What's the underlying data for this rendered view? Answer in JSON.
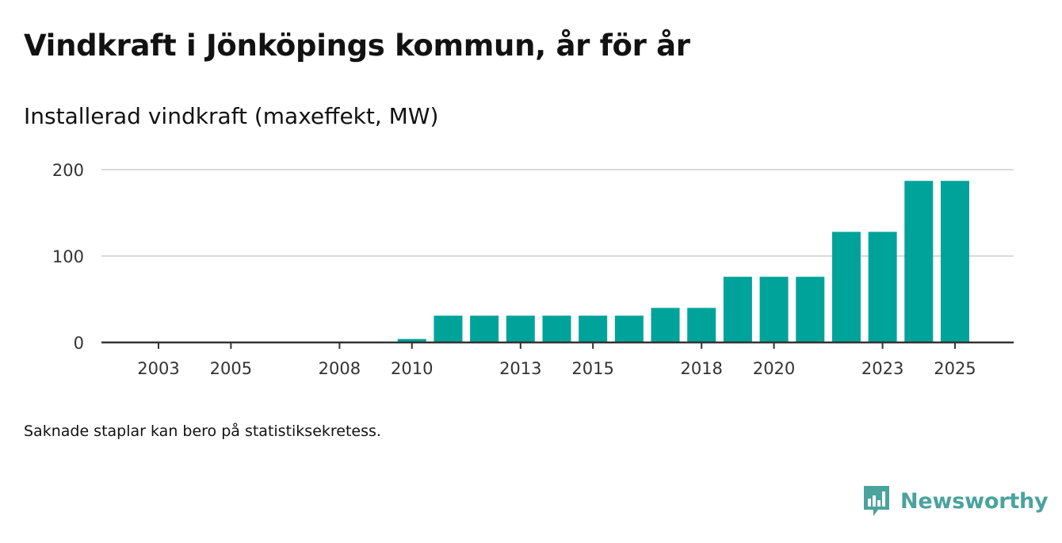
{
  "header": {
    "title": "Vindkraft i Jönköpings kommun, år för år",
    "subtitle": "Installerad vindkraft (maxeffekt, MW)"
  },
  "footer": {
    "note": "Saknade staplar kan bero på statistiksekretess.",
    "brand": "Newsworthy"
  },
  "colors": {
    "bar": "#00a39a",
    "grid": "#d9d9d9",
    "axis": "#333333",
    "brand": "#4aa39c"
  },
  "chart_data": {
    "type": "bar",
    "title": "Vindkraft i Jönköpings kommun, år för år",
    "subtitle": "Installerad vindkraft (maxeffekt, MW)",
    "xlabel": "",
    "ylabel": "",
    "ylim": [
      0,
      200
    ],
    "yticks": [
      0,
      100,
      200
    ],
    "grid": true,
    "categories": [
      "2003",
      "2004",
      "2005",
      "2006",
      "2007",
      "2008",
      "2009",
      "2010",
      "2011",
      "2012",
      "2013",
      "2014",
      "2015",
      "2016",
      "2017",
      "2018",
      "2019",
      "2020",
      "2021",
      "2022",
      "2023",
      "2024",
      "2025"
    ],
    "values": [
      0,
      0,
      0,
      0,
      0,
      0,
      0,
      4,
      31,
      31,
      31,
      31,
      31,
      31,
      40,
      40,
      76,
      76,
      76,
      128,
      128,
      187,
      187
    ],
    "xtick_labels": [
      "2003",
      "2005",
      "2008",
      "2010",
      "2013",
      "2015",
      "2018",
      "2020",
      "2023",
      "2025"
    ]
  }
}
